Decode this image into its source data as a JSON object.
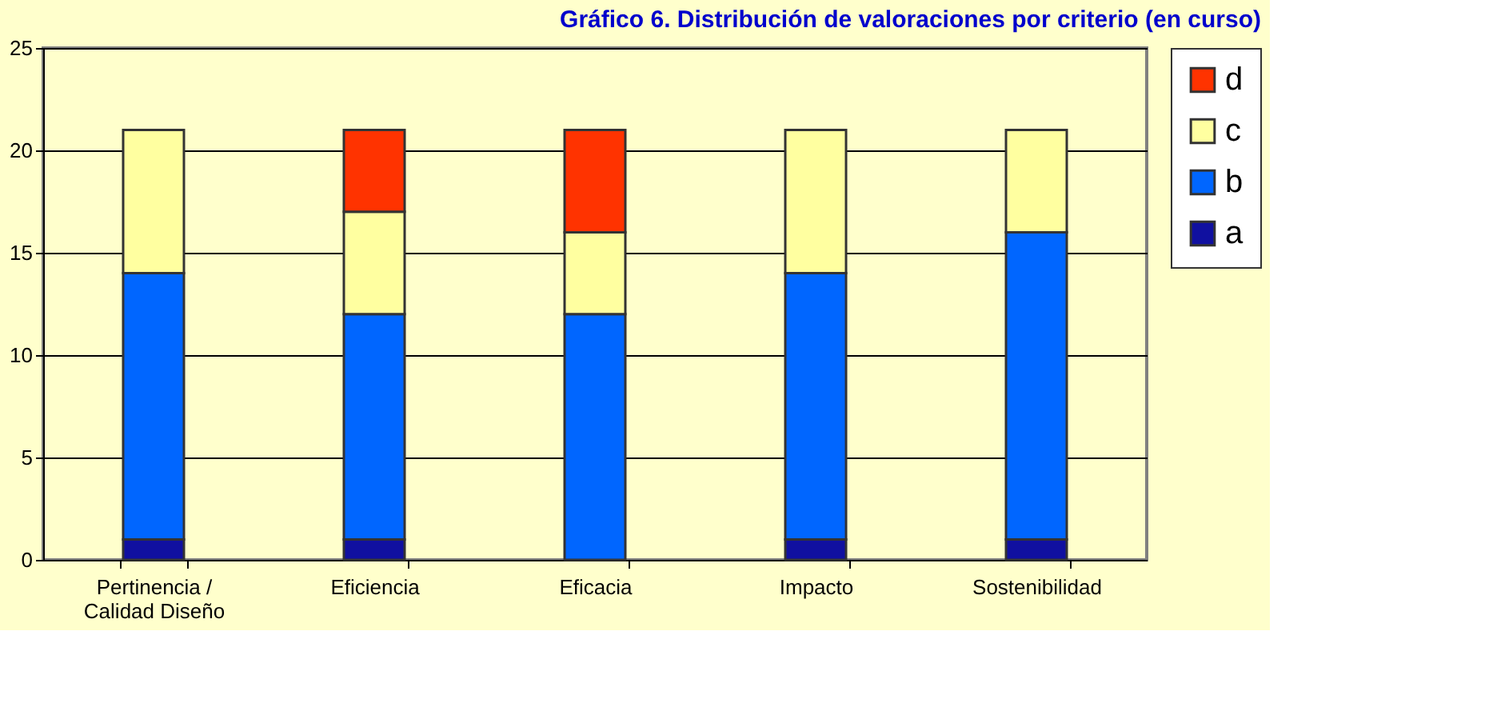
{
  "chart_data": {
    "type": "bar",
    "title": "Gráfico 6. Distribución de valoraciones por criterio (en curso)",
    "categories": [
      "Pertinencia / Calidad Diseño",
      "Eficiencia",
      "Eficacia",
      "Impacto",
      "Sostenibilidad"
    ],
    "stacked": true,
    "series": [
      {
        "name": "a",
        "color": "#1010a0",
        "values": [
          1,
          1,
          0,
          1,
          1
        ]
      },
      {
        "name": "b",
        "color": "#0066ff",
        "values": [
          13,
          11,
          12,
          13,
          15
        ]
      },
      {
        "name": "c",
        "color": "#ffffa0",
        "values": [
          7,
          5,
          4,
          7,
          5
        ]
      },
      {
        "name": "d",
        "color": "#ff3300",
        "values": [
          0,
          4,
          5,
          0,
          0
        ]
      }
    ],
    "ylim": [
      0,
      25
    ],
    "yticks": [
      0,
      5,
      10,
      15,
      20,
      25
    ],
    "grid": "y",
    "legend": "right"
  }
}
